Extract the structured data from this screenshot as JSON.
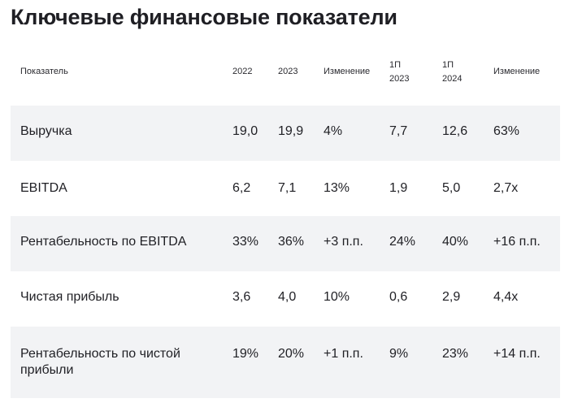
{
  "title": "Ключевые финансовые показатели",
  "table": {
    "headers": [
      "Показатель",
      "2022",
      "2023",
      "Изменение",
      "1П 2023",
      "1П 2024",
      "Изменение"
    ],
    "header_lines": {
      "h4": [
        "1П",
        "2023"
      ],
      "h5": [
        "1П",
        "2024"
      ]
    },
    "rows": [
      [
        "Выручка",
        "19,0",
        "19,9",
        "4%",
        "7,7",
        "12,6",
        "63%"
      ],
      [
        "EBITDA",
        "6,2",
        "7,1",
        "13%",
        "1,9",
        "5,0",
        "2,7x"
      ],
      [
        "Рентабельность по EBITDA",
        "33%",
        "36%",
        "+3 п.п.",
        "24%",
        "40%",
        "+16 п.п."
      ],
      [
        "Чистая прибыль",
        "3,6",
        "4,0",
        "10%",
        "0,6",
        "2,9",
        "4,4x"
      ],
      [
        "Рентабельность по чистой прибыли",
        "19%",
        "20%",
        "+1 п.п.",
        "9%",
        "23%",
        "+14 п.п."
      ]
    ],
    "row_label_lines": {
      "r4": [
        "Рентабельность по чистой",
        "прибыли"
      ]
    }
  }
}
